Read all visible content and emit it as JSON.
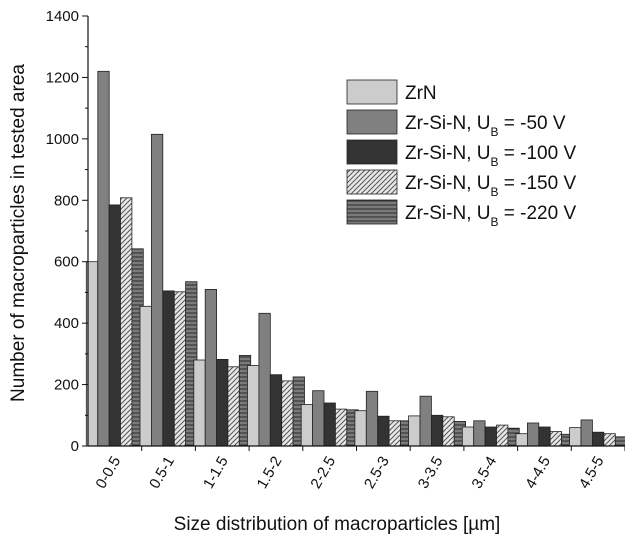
{
  "chart_data": {
    "type": "bar",
    "xlabel": "Size distribution of macroparticles [µm]",
    "ylabel": "Number of macroparticles in tested area",
    "ylim": [
      0,
      1400
    ],
    "yticks": [
      "0",
      "200",
      "400",
      "600",
      "800",
      "1000",
      "1200",
      "1400"
    ],
    "categories": [
      "0-0.5",
      "0.5-1",
      "1-1.5",
      "1.5-2",
      "2-2.5",
      "2.5-3",
      "3-3.5",
      "3.5-4",
      "4-4.5",
      "4.5-5"
    ],
    "series": [
      {
        "name": "ZrN",
        "name_main": "ZrN",
        "name_sub": "",
        "name_suffix": "",
        "color": "#cccccc",
        "pattern": "solid",
        "values": [
          600,
          455,
          280,
          262,
          135,
          115,
          98,
          62,
          40,
          60
        ]
      },
      {
        "name": "Zr-Si-N, UB = -50 V",
        "name_main": "Zr-Si-N, U",
        "name_sub": "B",
        "name_suffix": " = -50 V",
        "color": "#808080",
        "pattern": "solid",
        "values": [
          1220,
          1015,
          510,
          432,
          180,
          178,
          162,
          82,
          75,
          85
        ]
      },
      {
        "name": "Zr-Si-N, UB = -100 V",
        "name_main": "Zr-Si-N, U",
        "name_sub": "B",
        "name_suffix": " = -100 V",
        "color": "#333333",
        "pattern": "solid",
        "values": [
          785,
          505,
          282,
          232,
          140,
          97,
          100,
          62,
          62,
          45
        ]
      },
      {
        "name": "Zr-Si-N, UB = -150 V",
        "name_main": "Zr-Si-N, U",
        "name_sub": "B",
        "name_suffix": " = -150 V",
        "color": "#d4d4d4",
        "pattern": "diagonal",
        "values": [
          808,
          502,
          258,
          212,
          120,
          82,
          95,
          68,
          47,
          40
        ]
      },
      {
        "name": "Zr-Si-N, UB = -220 V",
        "name_main": "Zr-Si-N, U",
        "name_sub": "B",
        "name_suffix": " = -220 V",
        "color": "#6e6e6e",
        "pattern": "horizontal",
        "values": [
          642,
          535,
          295,
          225,
          118,
          82,
          80,
          58,
          38,
          30
        ]
      }
    ],
    "grid": false,
    "legend_position": "top-right"
  }
}
